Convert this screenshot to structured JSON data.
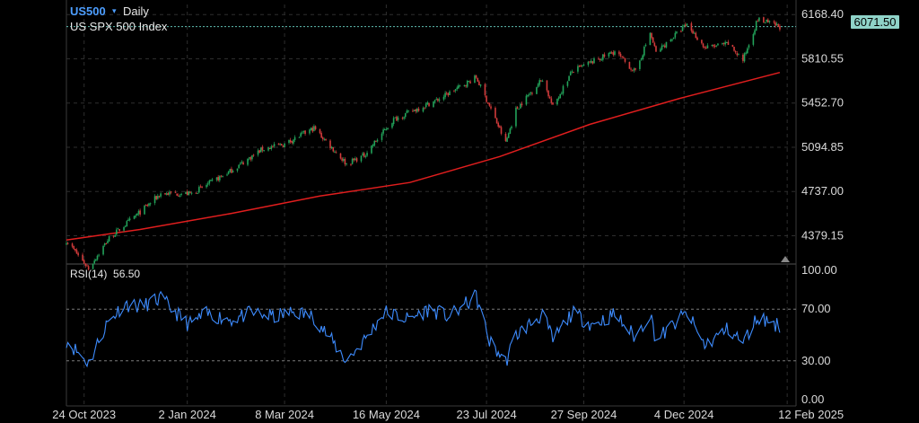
{
  "header": {
    "symbol": "US500",
    "symbol_caret": "▾",
    "timeframe": "Daily",
    "instrument_name": "US SPX 500 Index"
  },
  "last_price_tag": "6071.50",
  "colors": {
    "background": "#000000",
    "grid": "#2e2e2e",
    "axis_text": "#d9d9d9",
    "candle_up": "#22a35a",
    "candle_down": "#d23b3b",
    "moving_average": "#e01e1e",
    "rsi_line": "#3d8bfd",
    "price_line": "#5fbfb3",
    "symbol_text": "#4d9eff"
  },
  "chart_data": [
    {
      "type": "candlestick",
      "title": "US SPX 500 Index",
      "x_tick_labels": [
        "24 Oct 2023",
        "2 Jan 2024",
        "8 Mar 2024",
        "16 May 2024",
        "23 Jul 2024",
        "27 Sep 2024",
        "4 Dec 2024",
        "12 Feb 2025"
      ],
      "y_tick_labels": [
        "6168.40",
        "5810.55",
        "5452.70",
        "5094.85",
        "4737.00",
        "4379.15"
      ],
      "ylim": [
        4150,
        6250
      ],
      "grid": true,
      "last_price": 6071.5,
      "price_waypoints": {
        "x": [
          "2023-10-12",
          "2023-10-27",
          "2023-11-10",
          "2023-11-30",
          "2023-12-15",
          "2024-01-05",
          "2024-01-31",
          "2024-02-22",
          "2024-03-08",
          "2024-03-28",
          "2024-04-19",
          "2024-05-01",
          "2024-05-21",
          "2024-06-20",
          "2024-07-16",
          "2024-07-25",
          "2024-08-05",
          "2024-08-12",
          "2024-08-30",
          "2024-09-06",
          "2024-09-19",
          "2024-10-18",
          "2024-11-01",
          "2024-11-11",
          "2024-11-15",
          "2024-12-06",
          "2024-12-18",
          "2025-01-03",
          "2025-01-13",
          "2025-01-23",
          "2025-02-07"
        ],
        "y": [
          4340,
          4115,
          4360,
          4560,
          4720,
          4720,
          4900,
          5080,
          5120,
          5250,
          4960,
          5030,
          5320,
          5480,
          5660,
          5430,
          5130,
          5400,
          5650,
          5420,
          5710,
          5870,
          5700,
          6020,
          5860,
          6090,
          5900,
          5930,
          5800,
          6130,
          6070
        ]
      },
      "series": [
        {
          "name": "",
          "type": "line",
          "x": [
            "2023-10-12",
            "2023-12-01",
            "2024-02-01",
            "2024-04-01",
            "2024-06-01",
            "2024-08-01",
            "2024-10-01",
            "2024-12-01",
            "2025-02-07"
          ],
          "y": [
            4345,
            4430,
            4560,
            4700,
            4810,
            5020,
            5280,
            5490,
            5700
          ]
        }
      ]
    },
    {
      "type": "line",
      "title": "RSI(14)",
      "current_value": "56.50",
      "y_tick_labels": [
        "100.00",
        "70.00",
        "30.00",
        "0.00"
      ],
      "ylim": [
        0,
        100
      ],
      "reference_lines": [
        70,
        30
      ],
      "series": [
        {
          "name": "",
          "x": [
            "2023-10-12",
            "2023-10-27",
            "2023-11-08",
            "2023-11-20",
            "2023-12-01",
            "2023-12-15",
            "2024-01-03",
            "2024-01-15",
            "2024-02-01",
            "2024-02-15",
            "2024-03-01",
            "2024-03-15",
            "2024-03-28",
            "2024-04-19",
            "2024-05-01",
            "2024-05-15",
            "2024-05-31",
            "2024-06-14",
            "2024-06-28",
            "2024-07-16",
            "2024-07-25",
            "2024-08-05",
            "2024-08-12",
            "2024-08-30",
            "2024-09-06",
            "2024-09-19",
            "2024-10-03",
            "2024-10-18",
            "2024-11-01",
            "2024-11-11",
            "2024-11-15",
            "2024-12-06",
            "2024-12-18",
            "2025-01-03",
            "2025-01-13",
            "2025-01-23",
            "2025-02-07"
          ],
          "y": [
            46,
            28,
            58,
            74,
            72,
            78,
            58,
            66,
            62,
            67,
            64,
            68,
            64,
            30,
            46,
            68,
            62,
            70,
            64,
            80,
            45,
            29,
            50,
            66,
            46,
            67,
            58,
            66,
            48,
            67,
            46,
            67,
            42,
            55,
            44,
            64,
            57
          ]
        }
      ]
    }
  ]
}
